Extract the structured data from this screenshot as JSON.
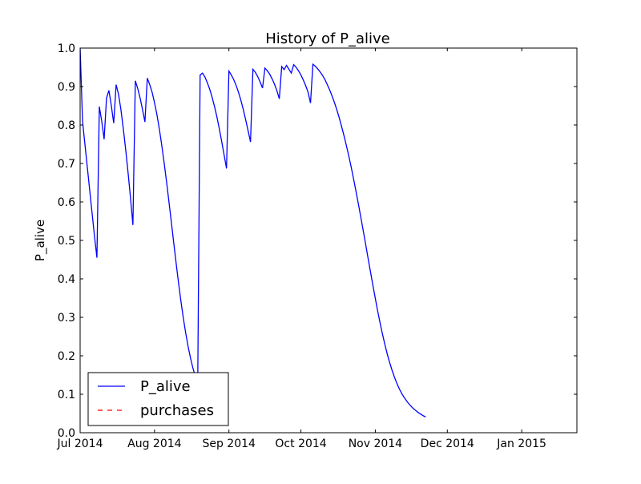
{
  "chart_data": {
    "type": "line",
    "title": "History of P_alive",
    "xlabel": "",
    "ylabel": "P_alive",
    "x_type": "date",
    "xlim": [
      "2014-07-01",
      "2015-01-24"
    ],
    "ylim": [
      0.0,
      1.0
    ],
    "x_ticks": [
      {
        "date": "2014-07-01",
        "label": "Jul 2014"
      },
      {
        "date": "2014-08-01",
        "label": "Aug 2014"
      },
      {
        "date": "2014-09-01",
        "label": "Sep 2014"
      },
      {
        "date": "2014-10-01",
        "label": "Oct 2014"
      },
      {
        "date": "2014-11-01",
        "label": "Nov 2014"
      },
      {
        "date": "2014-12-01",
        "label": "Dec 2014"
      },
      {
        "date": "2015-01-01",
        "label": "Jan 2015"
      }
    ],
    "y_ticks": [
      {
        "value": 0.0,
        "label": "0.0"
      },
      {
        "value": 0.1,
        "label": "0.1"
      },
      {
        "value": 0.2,
        "label": "0.2"
      },
      {
        "value": 0.3,
        "label": "0.3"
      },
      {
        "value": 0.4,
        "label": "0.4"
      },
      {
        "value": 0.5,
        "label": "0.5"
      },
      {
        "value": 0.6,
        "label": "0.6"
      },
      {
        "value": 0.7,
        "label": "0.7"
      },
      {
        "value": 0.8,
        "label": "0.8"
      },
      {
        "value": 0.9,
        "label": "0.9"
      },
      {
        "value": 1.0,
        "label": "1.0"
      }
    ],
    "grid": false,
    "legend_position": "lower-left",
    "legend": [
      {
        "label": "P_alive",
        "color": "#0000ff",
        "style": "solid"
      },
      {
        "label": "purchases",
        "color": "#ff0000",
        "style": "dashed"
      }
    ],
    "series": [
      {
        "name": "P_alive",
        "color": "#0000ff",
        "style": "solid",
        "points": [
          [
            "2014-07-01",
            1.0
          ],
          [
            "2014-07-02",
            0.81
          ],
          [
            "2014-07-03",
            0.75
          ],
          [
            "2014-07-04",
            0.69
          ],
          [
            "2014-07-05",
            0.63
          ],
          [
            "2014-07-06",
            0.57
          ],
          [
            "2014-07-07",
            0.51
          ],
          [
            "2014-07-08",
            0.455
          ],
          [
            "2014-07-09",
            0.848
          ],
          [
            "2014-07-10",
            0.81
          ],
          [
            "2014-07-11",
            0.763
          ],
          [
            "2014-07-12",
            0.87
          ],
          [
            "2014-07-13",
            0.89
          ],
          [
            "2014-07-14",
            0.85
          ],
          [
            "2014-07-15",
            0.805
          ],
          [
            "2014-07-16",
            0.905
          ],
          [
            "2014-07-17",
            0.88
          ],
          [
            "2014-07-18",
            0.84
          ],
          [
            "2014-07-19",
            0.79
          ],
          [
            "2014-07-20",
            0.735
          ],
          [
            "2014-07-21",
            0.675
          ],
          [
            "2014-07-22",
            0.61
          ],
          [
            "2014-07-23",
            0.54
          ],
          [
            "2014-07-24",
            0.915
          ],
          [
            "2014-07-25",
            0.895
          ],
          [
            "2014-07-26",
            0.87
          ],
          [
            "2014-07-27",
            0.84
          ],
          [
            "2014-07-28",
            0.808
          ],
          [
            "2014-07-29",
            0.922
          ],
          [
            "2014-07-30",
            0.905
          ],
          [
            "2014-07-31",
            0.885
          ],
          [
            "2014-08-01",
            0.858
          ],
          [
            "2014-08-02",
            0.827
          ],
          [
            "2014-08-03",
            0.79
          ],
          [
            "2014-08-04",
            0.748
          ],
          [
            "2014-08-05",
            0.702
          ],
          [
            "2014-08-06",
            0.653
          ],
          [
            "2014-08-07",
            0.601
          ],
          [
            "2014-08-08",
            0.548
          ],
          [
            "2014-08-09",
            0.494
          ],
          [
            "2014-08-10",
            0.441
          ],
          [
            "2014-08-11",
            0.39
          ],
          [
            "2014-08-12",
            0.342
          ],
          [
            "2014-08-13",
            0.298
          ],
          [
            "2014-08-14",
            0.259
          ],
          [
            "2014-08-15",
            0.224
          ],
          [
            "2014-08-16",
            0.194
          ],
          [
            "2014-08-17",
            0.168
          ],
          [
            "2014-08-18",
            0.146
          ],
          [
            "2014-08-19",
            0.126
          ],
          [
            "2014-08-20",
            0.93
          ],
          [
            "2014-08-21",
            0.935
          ],
          [
            "2014-08-22",
            0.925
          ],
          [
            "2014-08-23",
            0.91
          ],
          [
            "2014-08-24",
            0.893
          ],
          [
            "2014-08-25",
            0.872
          ],
          [
            "2014-08-26",
            0.848
          ],
          [
            "2014-08-27",
            0.821
          ],
          [
            "2014-08-28",
            0.79
          ],
          [
            "2014-08-29",
            0.757
          ],
          [
            "2014-08-30",
            0.722
          ],
          [
            "2014-08-31",
            0.687
          ],
          [
            "2014-09-01",
            0.94
          ],
          [
            "2014-09-02",
            0.93
          ],
          [
            "2014-09-03",
            0.918
          ],
          [
            "2014-09-04",
            0.903
          ],
          [
            "2014-09-05",
            0.885
          ],
          [
            "2014-09-06",
            0.864
          ],
          [
            "2014-09-07",
            0.84
          ],
          [
            "2014-09-08",
            0.813
          ],
          [
            "2014-09-09",
            0.785
          ],
          [
            "2014-09-10",
            0.756
          ],
          [
            "2014-09-11",
            0.945
          ],
          [
            "2014-09-12",
            0.937
          ],
          [
            "2014-09-13",
            0.926
          ],
          [
            "2014-09-14",
            0.912
          ],
          [
            "2014-09-15",
            0.896
          ],
          [
            "2014-09-16",
            0.948
          ],
          [
            "2014-09-17",
            0.941
          ],
          [
            "2014-09-18",
            0.932
          ],
          [
            "2014-09-19",
            0.92
          ],
          [
            "2014-09-20",
            0.906
          ],
          [
            "2014-09-21",
            0.889
          ],
          [
            "2014-09-22",
            0.868
          ],
          [
            "2014-09-23",
            0.952
          ],
          [
            "2014-09-24",
            0.944
          ],
          [
            "2014-09-25",
            0.955
          ],
          [
            "2014-09-26",
            0.945
          ],
          [
            "2014-09-27",
            0.935
          ],
          [
            "2014-09-28",
            0.957
          ],
          [
            "2014-09-29",
            0.95
          ],
          [
            "2014-09-30",
            0.941
          ],
          [
            "2014-10-01",
            0.93
          ],
          [
            "2014-10-02",
            0.917
          ],
          [
            "2014-10-03",
            0.902
          ],
          [
            "2014-10-04",
            0.885
          ],
          [
            "2014-10-05",
            0.857
          ],
          [
            "2014-10-06",
            0.958
          ],
          [
            "2014-10-07",
            0.953
          ],
          [
            "2014-10-08",
            0.946
          ],
          [
            "2014-10-09",
            0.938
          ],
          [
            "2014-10-10",
            0.929
          ],
          [
            "2014-10-11",
            0.918
          ],
          [
            "2014-10-12",
            0.905
          ],
          [
            "2014-10-13",
            0.891
          ],
          [
            "2014-10-14",
            0.875
          ],
          [
            "2014-10-15",
            0.858
          ],
          [
            "2014-10-16",
            0.839
          ],
          [
            "2014-10-17",
            0.818
          ],
          [
            "2014-10-18",
            0.795
          ],
          [
            "2014-10-19",
            0.771
          ],
          [
            "2014-10-20",
            0.745
          ],
          [
            "2014-10-21",
            0.718
          ],
          [
            "2014-10-22",
            0.689
          ],
          [
            "2014-10-23",
            0.658
          ],
          [
            "2014-10-24",
            0.626
          ],
          [
            "2014-10-25",
            0.593
          ],
          [
            "2014-10-26",
            0.559
          ],
          [
            "2014-10-27",
            0.524
          ],
          [
            "2014-10-28",
            0.489
          ],
          [
            "2014-10-29",
            0.453
          ],
          [
            "2014-10-30",
            0.418
          ],
          [
            "2014-10-31",
            0.383
          ],
          [
            "2014-11-01",
            0.349
          ],
          [
            "2014-11-02",
            0.316
          ],
          [
            "2014-11-03",
            0.285
          ],
          [
            "2014-11-04",
            0.256
          ],
          [
            "2014-11-05",
            0.229
          ],
          [
            "2014-11-06",
            0.204
          ],
          [
            "2014-11-07",
            0.182
          ],
          [
            "2014-11-08",
            0.162
          ],
          [
            "2014-11-09",
            0.144
          ],
          [
            "2014-11-10",
            0.128
          ],
          [
            "2014-11-11",
            0.114
          ],
          [
            "2014-11-12",
            0.102
          ],
          [
            "2014-11-13",
            0.092
          ],
          [
            "2014-11-14",
            0.083
          ],
          [
            "2014-11-15",
            0.075
          ],
          [
            "2014-11-16",
            0.068
          ],
          [
            "2014-11-17",
            0.062
          ],
          [
            "2014-11-18",
            0.057
          ],
          [
            "2014-11-19",
            0.052
          ],
          [
            "2014-11-20",
            0.048
          ],
          [
            "2014-11-21",
            0.044
          ],
          [
            "2014-11-22",
            0.041
          ]
        ]
      },
      {
        "name": "purchases",
        "color": "#ff0000",
        "style": "dashed",
        "points": []
      }
    ]
  }
}
